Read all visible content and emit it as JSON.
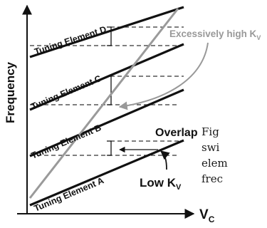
{
  "axes": {
    "y_label": "Frequency",
    "x_label_main": "V",
    "x_label_sub": "C"
  },
  "tuning_elements": [
    {
      "label": "Tuning Element A"
    },
    {
      "label": "Tuning Element B"
    },
    {
      "label": "Tuning Element C"
    },
    {
      "label": "Tuning Element D"
    }
  ],
  "annotations": {
    "high_kv_main": "Excessively high K",
    "high_kv_sub": "V",
    "overlap": "Overlap",
    "low_kv_main": "Low K",
    "low_kv_sub": "V"
  },
  "caption": {
    "line1": "Fig",
    "line2": "swi",
    "line3": "elem",
    "line4": "frec"
  },
  "colors": {
    "element_lines": "#111111",
    "high_kv_line": "#9a9a9a",
    "dashed": "#333333"
  }
}
